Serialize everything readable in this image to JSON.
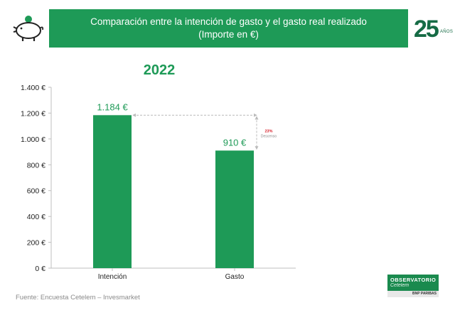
{
  "header": {
    "title_line1": "Comparación entre la intención de gasto y el gasto real realizado",
    "title_line2": "(Importe en €)",
    "anniversary_number": "25",
    "anniversary_word": "AÑOS"
  },
  "chart_data": {
    "type": "bar",
    "title": "2022",
    "categories": [
      "Intención",
      "Gasto"
    ],
    "values": [
      1184,
      910
    ],
    "data_labels": [
      "1.184 €",
      "910 €"
    ],
    "ylim": [
      0,
      1400
    ],
    "yticks": [
      0,
      200,
      400,
      600,
      800,
      1000,
      1200,
      1400
    ],
    "ytick_labels": [
      "0 €",
      "200 €",
      "400 €",
      "600 €",
      "800 €",
      "1.000 €",
      "1.200 €",
      "1.400 €"
    ],
    "xlabel": "",
    "ylabel": "",
    "grid": false,
    "bar_color": "#1e9a57",
    "annotation": {
      "percent": "23%",
      "label": "Descenso",
      "color": "#d9232d"
    }
  },
  "footer": {
    "source": "Fuente: Encuesta Cetelem – Invesmarket",
    "logo_line1": "OBSERVATORIO",
    "logo_line2": "Cetelem",
    "logo_strip": "BNP PARIBAS"
  },
  "colors": {
    "brand_green": "#1e9a57",
    "dark_green": "#166b45"
  }
}
